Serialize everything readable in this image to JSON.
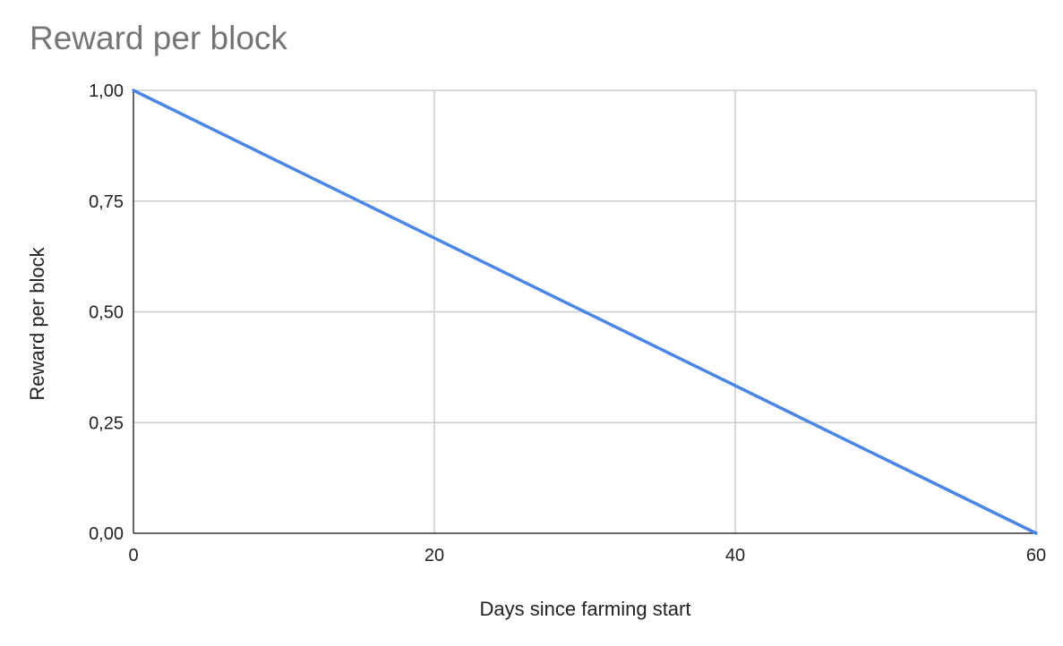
{
  "chart_data": {
    "type": "line",
    "title": "Reward per block",
    "xlabel": "Days since farming start",
    "ylabel": "Reward per block",
    "xlim": [
      0,
      60
    ],
    "ylim": [
      0,
      1
    ],
    "x_ticks": [
      0,
      20,
      40,
      60
    ],
    "x_tick_labels": [
      "0",
      "20",
      "40",
      "60"
    ],
    "y_ticks": [
      0,
      0.25,
      0.5,
      0.75,
      1
    ],
    "y_tick_labels": [
      "0,00",
      "0,25",
      "0,50",
      "0,75",
      "1,00"
    ],
    "grid": true,
    "series": [
      {
        "color": "#4a86e8",
        "x": [
          0,
          60
        ],
        "y": [
          1.0,
          0.0
        ]
      }
    ]
  }
}
